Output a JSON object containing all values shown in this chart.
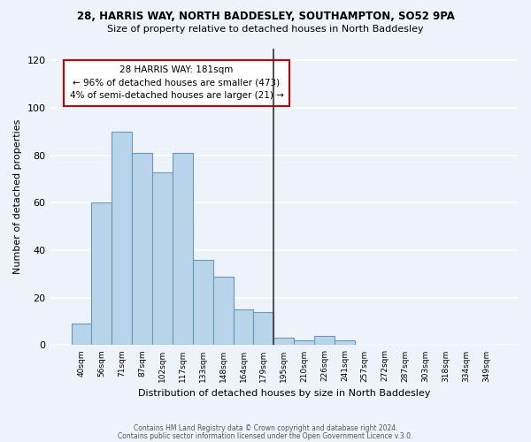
{
  "title1": "28, HARRIS WAY, NORTH BADDESLEY, SOUTHAMPTON, SO52 9PA",
  "title2": "Size of property relative to detached houses in North Baddesley",
  "xlabel": "Distribution of detached houses by size in North Baddesley",
  "ylabel": "Number of detached properties",
  "bar_color": "#b8d4ea",
  "bar_edge_color": "#6699bb",
  "bin_labels": [
    "40sqm",
    "56sqm",
    "71sqm",
    "87sqm",
    "102sqm",
    "117sqm",
    "133sqm",
    "148sqm",
    "164sqm",
    "179sqm",
    "195sqm",
    "210sqm",
    "226sqm",
    "241sqm",
    "257sqm",
    "272sqm",
    "287sqm",
    "303sqm",
    "318sqm",
    "334sqm",
    "349sqm"
  ],
  "bar_heights": [
    9,
    60,
    90,
    81,
    73,
    81,
    36,
    29,
    15,
    14,
    3,
    2,
    4,
    2,
    0,
    0,
    0,
    0,
    0,
    0,
    0
  ],
  "vline_x": 9.5,
  "vline_color": "#333333",
  "annotation_title": "28 HARRIS WAY: 181sqm",
  "annotation_line1": "← 96% of detached houses are smaller (473)",
  "annotation_line2": "4% of semi-detached houses are larger (21) →",
  "annotation_box_color": "#ffffff",
  "annotation_box_edge_color": "#cc0000",
  "ylim": [
    0,
    125
  ],
  "yticks": [
    0,
    20,
    40,
    60,
    80,
    100,
    120
  ],
  "footer1": "Contains HM Land Registry data © Crown copyright and database right 2024.",
  "footer2": "Contains public sector information licensed under the Open Government Licence v.3.0.",
  "bg_color": "#eef2fb",
  "grid_color": "#ffffff"
}
